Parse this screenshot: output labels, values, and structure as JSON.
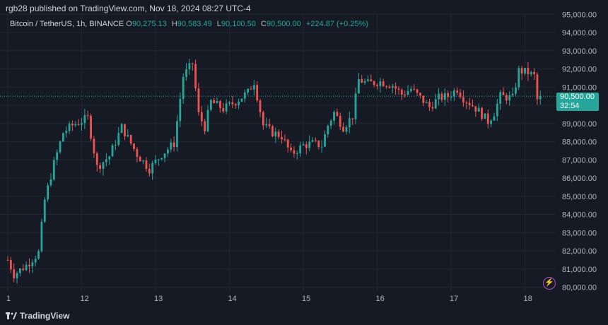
{
  "header": {
    "publisher_line": "rgb28 published on TradingView.com, Nov 18, 2024 08:27 UTC-4"
  },
  "legend": {
    "symbol": "Bitcoin / TetherUS, 1h, BINANCE",
    "open_label": "O",
    "open": "90,275.13",
    "high_label": "H",
    "high": "90,583.49",
    "low_label": "L",
    "low": "90,100.50",
    "close_label": "C",
    "close": "90,500.00",
    "change": "+224.87 (+0.25%)"
  },
  "price_badge": {
    "price": "90,500.00",
    "countdown": "32:54"
  },
  "footer": {
    "brand": "TradingView"
  },
  "colors": {
    "background": "#161a25",
    "up": "#26a69a",
    "down": "#ef5350",
    "grid": "#22262f",
    "text": "#b2b5be"
  },
  "icons": {
    "flash": "flash-icon",
    "logo": "tradingview-logo-icon"
  },
  "chart_data": {
    "type": "candlestick",
    "title": "",
    "xlabel": "",
    "ylabel": "",
    "ylim": [
      79700,
      95000
    ],
    "y_ticks": [
      80000,
      81000,
      82000,
      83000,
      84000,
      85000,
      86000,
      87000,
      88000,
      89000,
      90000,
      91000,
      92000,
      93000,
      94000,
      95000
    ],
    "y_tick_labels": [
      "80,000.00",
      "81,000.00",
      "82,000.00",
      "83,000.00",
      "84,000.00",
      "85,000.00",
      "86,000.00",
      "87,000.00",
      "88,000.00",
      "89,000.00",
      "90,000.00",
      "91,000.00",
      "92,000.00",
      "93,000.00",
      "94,000.00",
      "95,000.00"
    ],
    "x_ticks": [
      {
        "label": "1",
        "hour": 0
      },
      {
        "label": "12",
        "hour": 24
      },
      {
        "label": "13",
        "hour": 48
      },
      {
        "label": "14",
        "hour": 72
      },
      {
        "label": "15",
        "hour": 96
      },
      {
        "label": "16",
        "hour": 120
      },
      {
        "label": "17",
        "hour": 144
      },
      {
        "label": "18",
        "hour": 168
      }
    ],
    "current_price": 90500,
    "grid": true,
    "key_points": [
      {
        "hour": 0,
        "price": 81500
      },
      {
        "hour": 2,
        "price": 80700
      },
      {
        "hour": 6,
        "price": 81200
      },
      {
        "hour": 10,
        "price": 81900
      },
      {
        "hour": 12,
        "price": 84800
      },
      {
        "hour": 15,
        "price": 86800
      },
      {
        "hour": 18,
        "price": 88500
      },
      {
        "hour": 21,
        "price": 88900
      },
      {
        "hour": 26,
        "price": 89300
      },
      {
        "hour": 29,
        "price": 86600
      },
      {
        "hour": 33,
        "price": 87200
      },
      {
        "hour": 37,
        "price": 88800
      },
      {
        "hour": 42,
        "price": 87300
      },
      {
        "hour": 46,
        "price": 86500
      },
      {
        "hour": 50,
        "price": 87300
      },
      {
        "hour": 54,
        "price": 87900
      },
      {
        "hour": 57,
        "price": 91600
      },
      {
        "hour": 60,
        "price": 92300
      },
      {
        "hour": 62,
        "price": 89500
      },
      {
        "hour": 64,
        "price": 88800
      },
      {
        "hour": 66,
        "price": 90200
      },
      {
        "hour": 70,
        "price": 89800
      },
      {
        "hour": 74,
        "price": 90200
      },
      {
        "hour": 78,
        "price": 90700
      },
      {
        "hour": 80,
        "price": 91300
      },
      {
        "hour": 83,
        "price": 88900
      },
      {
        "hour": 86,
        "price": 88500
      },
      {
        "hour": 89,
        "price": 88300
      },
      {
        "hour": 92,
        "price": 87300
      },
      {
        "hour": 96,
        "price": 87800
      },
      {
        "hour": 99,
        "price": 87900
      },
      {
        "hour": 102,
        "price": 87800
      },
      {
        "hour": 104,
        "price": 88900
      },
      {
        "hour": 106,
        "price": 89600
      },
      {
        "hour": 109,
        "price": 88800
      },
      {
        "hour": 112,
        "price": 89400
      },
      {
        "hour": 114,
        "price": 91400
      },
      {
        "hour": 117,
        "price": 91200
      },
      {
        "hour": 121,
        "price": 91300
      },
      {
        "hour": 125,
        "price": 91100
      },
      {
        "hour": 128,
        "price": 90600
      },
      {
        "hour": 131,
        "price": 90900
      },
      {
        "hour": 134,
        "price": 90400
      },
      {
        "hour": 137,
        "price": 89900
      },
      {
        "hour": 140,
        "price": 90400
      },
      {
        "hour": 143,
        "price": 90500
      },
      {
        "hour": 146,
        "price": 90900
      },
      {
        "hour": 148,
        "price": 90400
      },
      {
        "hour": 151,
        "price": 90000
      },
      {
        "hour": 154,
        "price": 89500
      },
      {
        "hour": 156,
        "price": 89100
      },
      {
        "hour": 158,
        "price": 89600
      },
      {
        "hour": 160,
        "price": 90500
      },
      {
        "hour": 164,
        "price": 90400
      },
      {
        "hour": 166,
        "price": 91900
      },
      {
        "hour": 169,
        "price": 91800
      },
      {
        "hour": 171,
        "price": 91600
      },
      {
        "hour": 172,
        "price": 90300
      },
      {
        "hour": 173,
        "price": 90500
      }
    ]
  }
}
